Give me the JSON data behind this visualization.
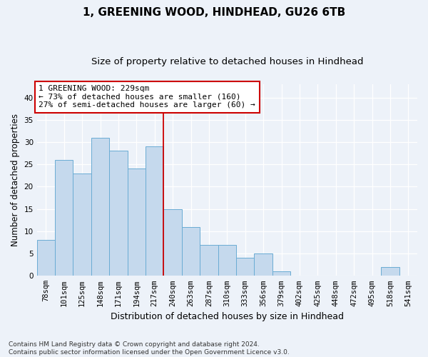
{
  "title1": "1, GREENING WOOD, HINDHEAD, GU26 6TB",
  "title2": "Size of property relative to detached houses in Hindhead",
  "xlabel": "Distribution of detached houses by size in Hindhead",
  "ylabel": "Number of detached properties",
  "categories": [
    "78sqm",
    "101sqm",
    "125sqm",
    "148sqm",
    "171sqm",
    "194sqm",
    "217sqm",
    "240sqm",
    "263sqm",
    "287sqm",
    "310sqm",
    "333sqm",
    "356sqm",
    "379sqm",
    "402sqm",
    "425sqm",
    "448sqm",
    "472sqm",
    "495sqm",
    "518sqm",
    "541sqm"
  ],
  "values": [
    8,
    26,
    23,
    31,
    28,
    24,
    29,
    15,
    11,
    7,
    7,
    4,
    5,
    1,
    0,
    0,
    0,
    0,
    0,
    2,
    0
  ],
  "bar_color": "#c5d9ed",
  "bar_edge_color": "#6aacd4",
  "background_color": "#edf2f9",
  "grid_color": "#ffffff",
  "vline_x_index": 7,
  "vline_color": "#cc0000",
  "annotation_text": "1 GREENING WOOD: 229sqm\n← 73% of detached houses are smaller (160)\n27% of semi-detached houses are larger (60) →",
  "annotation_box_color": "#ffffff",
  "annotation_box_edge": "#cc0000",
  "ylim": [
    0,
    43
  ],
  "yticks": [
    0,
    5,
    10,
    15,
    20,
    25,
    30,
    35,
    40
  ],
  "footnote": "Contains HM Land Registry data © Crown copyright and database right 2024.\nContains public sector information licensed under the Open Government Licence v3.0.",
  "title1_fontsize": 11,
  "title2_fontsize": 9.5,
  "xlabel_fontsize": 9,
  "ylabel_fontsize": 8.5,
  "tick_fontsize": 7.5,
  "annot_fontsize": 8,
  "footnote_fontsize": 6.5
}
